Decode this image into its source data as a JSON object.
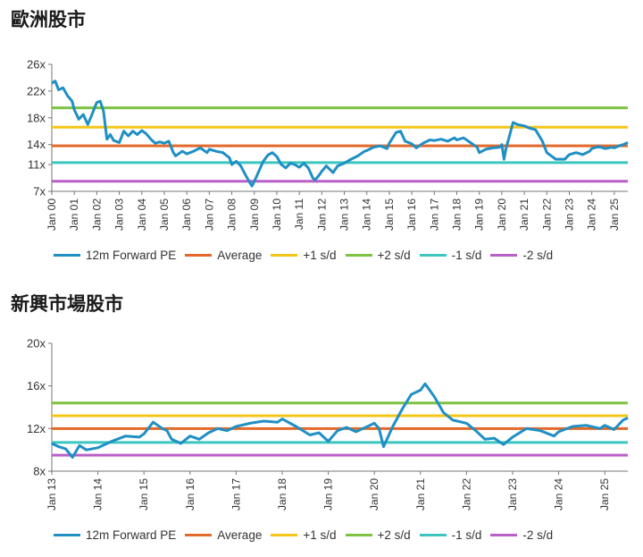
{
  "chart_data": [
    {
      "type": "line",
      "title": "歐洲股市",
      "xlabel": "",
      "ylabel": "",
      "ylim": [
        7,
        26
      ],
      "y_ticks": [
        "26x",
        "22x",
        "18x",
        "14x",
        "11x",
        "7x"
      ],
      "y_tick_values": [
        26,
        22,
        18,
        14,
        11,
        7
      ],
      "x_range": [
        2000,
        2025.6
      ],
      "x_ticks": [
        "Jan 00",
        "Jan 01",
        "Jan 02",
        "Jan 03",
        "Jan 04",
        "Jan 05",
        "Jan 06",
        "Jan 07",
        "Jan 08",
        "Jan 09",
        "Jan 10",
        "Jan 11",
        "Jan 12",
        "Jan 13",
        "Jan 14",
        "Jan 15",
        "Jan 16",
        "Jan 17",
        "Jan 18",
        "Jan 19",
        "Jan 20",
        "Jan 21",
        "Jan 22",
        "Jan 23",
        "Jan 24",
        "Jan 25"
      ],
      "x_tick_values": [
        2000,
        2001,
        2002,
        2003,
        2004,
        2005,
        2006,
        2007,
        2008,
        2009,
        2010,
        2011,
        2012,
        2013,
        2014,
        2015,
        2016,
        2017,
        2018,
        2019,
        2020,
        2021,
        2022,
        2023,
        2024,
        2025
      ],
      "reference_lines": [
        {
          "name": "Average",
          "value": 13.8,
          "color": "#E2692A"
        },
        {
          "name": "+1 s/d",
          "value": 16.6,
          "color": "#F5C518"
        },
        {
          "name": "+2 s/d",
          "value": 19.5,
          "color": "#7DC242"
        },
        {
          "name": "-1 s/d",
          "value": 11.3,
          "color": "#3CC6C0"
        },
        {
          "name": "-2 s/d",
          "value": 8.5,
          "color": "#B95FC7"
        }
      ],
      "series": [
        {
          "name": "12m Forward PE",
          "color": "#1F8FC4",
          "x": [
            2000,
            2000.15,
            2000.3,
            2000.5,
            2000.7,
            2000.9,
            2001,
            2001.2,
            2001.4,
            2001.6,
            2001.75,
            2001.9,
            2002,
            2002.15,
            2002.3,
            2002.45,
            2002.6,
            2002.75,
            2003,
            2003.2,
            2003.4,
            2003.6,
            2003.8,
            2004,
            2004.2,
            2004.4,
            2004.6,
            2004.8,
            2005,
            2005.2,
            2005.4,
            2005.5,
            2005.8,
            2006,
            2006.3,
            2006.6,
            2006.9,
            2007,
            2007.3,
            2007.6,
            2007.9,
            2008,
            2008.2,
            2008.4,
            2008.6,
            2008.8,
            2008.9,
            2009,
            2009.2,
            2009.4,
            2009.6,
            2009.8,
            2010,
            2010.2,
            2010.4,
            2010.6,
            2010.8,
            2011,
            2011.2,
            2011.4,
            2011.6,
            2011.7,
            2011.9,
            2012,
            2012.2,
            2012.5,
            2012.7,
            2013,
            2013.3,
            2013.6,
            2013.9,
            2014,
            2014.3,
            2014.6,
            2014.9,
            2015,
            2015.3,
            2015.5,
            2015.7,
            2016,
            2016.2,
            2016.5,
            2016.8,
            2017,
            2017.3,
            2017.6,
            2017.9,
            2018,
            2018.3,
            2018.6,
            2018.9,
            2019,
            2019.3,
            2019.6,
            2019.9,
            2020,
            2020.1,
            2020.2,
            2020.3,
            2020.5,
            2020.7,
            2021,
            2021.2,
            2021.5,
            2021.8,
            2022,
            2022.2,
            2022.4,
            2022.6,
            2022.8,
            2023,
            2023.3,
            2023.6,
            2023.9,
            2024,
            2024.3,
            2024.6,
            2024.9,
            2025,
            2025.2,
            2025.4,
            2025.6
          ],
          "values": [
            23.2,
            23.5,
            22.2,
            22.5,
            21.3,
            20.5,
            19.2,
            17.8,
            18.5,
            17.0,
            18.2,
            19.5,
            20.3,
            20.5,
            19.0,
            14.8,
            15.5,
            14.6,
            14.3,
            16.0,
            15.3,
            16.0,
            15.5,
            16.1,
            15.6,
            14.8,
            14.2,
            14.4,
            14.2,
            14.5,
            12.8,
            12.3,
            13.0,
            12.6,
            13.0,
            13.5,
            12.8,
            13.3,
            13.0,
            12.8,
            12.0,
            11.0,
            11.5,
            10.8,
            9.5,
            8.3,
            7.8,
            8.5,
            10.0,
            11.5,
            12.4,
            12.8,
            12.2,
            11.0,
            10.5,
            11.2,
            11.0,
            10.6,
            11.2,
            10.5,
            9.0,
            8.7,
            9.5,
            10.0,
            10.8,
            9.8,
            10.8,
            11.2,
            11.8,
            12.3,
            13.0,
            13.1,
            13.6,
            13.8,
            13.4,
            14.2,
            15.8,
            16.0,
            14.5,
            14.1,
            13.5,
            14.2,
            14.7,
            14.6,
            14.8,
            14.5,
            15.0,
            14.7,
            15.0,
            14.3,
            13.6,
            12.8,
            13.3,
            13.5,
            13.6,
            14.0,
            11.8,
            13.6,
            14.8,
            17.3,
            17.0,
            16.8,
            16.5,
            16.2,
            14.5,
            12.8,
            12.3,
            11.8,
            11.8,
            11.8,
            12.5,
            12.8,
            12.5,
            13.0,
            13.4,
            13.7,
            13.4,
            13.6,
            13.5,
            13.8,
            14.0,
            14.3
          ]
        }
      ],
      "legend": [
        "12m Forward PE",
        "Average",
        "+1 s/d",
        "+2 s/d",
        "-1 s/d",
        "-2 s/d"
      ],
      "legend_colors": [
        "#1F8FC4",
        "#E2692A",
        "#F5C518",
        "#7DC242",
        "#3CC6C0",
        "#B95FC7"
      ],
      "legend_position": "bottom"
    },
    {
      "type": "line",
      "title": "新興市場股市",
      "xlabel": "",
      "ylabel": "",
      "ylim": [
        8,
        20
      ],
      "y_ticks": [
        "20x",
        "16x",
        "12x",
        "8x"
      ],
      "y_tick_values": [
        20,
        16,
        12,
        8
      ],
      "x_range": [
        2013,
        2025.5
      ],
      "x_ticks": [
        "Jan 13",
        "Jan 14",
        "Jan 15",
        "Jan 16",
        "Jan 17",
        "Jan 18",
        "Jan 19",
        "Jan 20",
        "Jan 21",
        "Jan 22",
        "Jan 23",
        "Jan 24",
        "Jan 25"
      ],
      "x_tick_values": [
        2013,
        2014,
        2015,
        2016,
        2017,
        2018,
        2019,
        2020,
        2021,
        2022,
        2023,
        2024,
        2025
      ],
      "reference_lines": [
        {
          "name": "Average",
          "value": 12.0,
          "color": "#E2692A"
        },
        {
          "name": "+1 s/d",
          "value": 13.2,
          "color": "#F5C518"
        },
        {
          "name": "+2 s/d",
          "value": 14.4,
          "color": "#7DC242"
        },
        {
          "name": "-1 s/d",
          "value": 10.7,
          "color": "#3CC6C0"
        },
        {
          "name": "-2 s/d",
          "value": 9.5,
          "color": "#B95FC7"
        }
      ],
      "series": [
        {
          "name": "12m Forward PE",
          "color": "#1F8FC4",
          "x": [
            2013,
            2013.15,
            2013.3,
            2013.45,
            2013.6,
            2013.75,
            2014,
            2014.3,
            2014.6,
            2014.9,
            2015,
            2015.2,
            2015.4,
            2015.5,
            2015.6,
            2015.8,
            2016,
            2016.2,
            2016.4,
            2016.6,
            2016.8,
            2017,
            2017.3,
            2017.6,
            2017.9,
            2018,
            2018.3,
            2018.6,
            2018.8,
            2019,
            2019.2,
            2019.4,
            2019.6,
            2019.9,
            2020,
            2020.1,
            2020.2,
            2020.4,
            2020.6,
            2020.8,
            2021,
            2021.1,
            2021.3,
            2021.5,
            2021.7,
            2022,
            2022.2,
            2022.4,
            2022.6,
            2022.8,
            2023,
            2023.3,
            2023.6,
            2023.9,
            2024,
            2024.3,
            2024.6,
            2024.9,
            2025,
            2025.2,
            2025.4,
            2025.5
          ],
          "values": [
            10.6,
            10.3,
            10.1,
            9.3,
            10.4,
            10.0,
            10.2,
            10.8,
            11.3,
            11.2,
            11.5,
            12.6,
            12.0,
            11.8,
            11.0,
            10.6,
            11.3,
            11.0,
            11.6,
            12.0,
            11.8,
            12.2,
            12.5,
            12.7,
            12.6,
            12.9,
            12.2,
            11.4,
            11.6,
            10.8,
            11.8,
            12.1,
            11.7,
            12.3,
            12.5,
            12.0,
            10.3,
            12.2,
            13.8,
            15.2,
            15.6,
            16.2,
            15.0,
            13.5,
            12.8,
            12.5,
            11.8,
            11.0,
            11.1,
            10.5,
            11.2,
            12.0,
            11.8,
            11.3,
            11.7,
            12.2,
            12.3,
            12.0,
            12.3,
            11.9,
            12.8,
            13.0
          ]
        }
      ],
      "legend": [
        "12m Forward PE",
        "Average",
        "+1 s/d",
        "+2 s/d",
        "-1 s/d",
        "-2 s/d"
      ],
      "legend_colors": [
        "#1F8FC4",
        "#E2692A",
        "#F5C518",
        "#7DC242",
        "#3CC6C0",
        "#B95FC7"
      ],
      "legend_position": "bottom"
    }
  ]
}
